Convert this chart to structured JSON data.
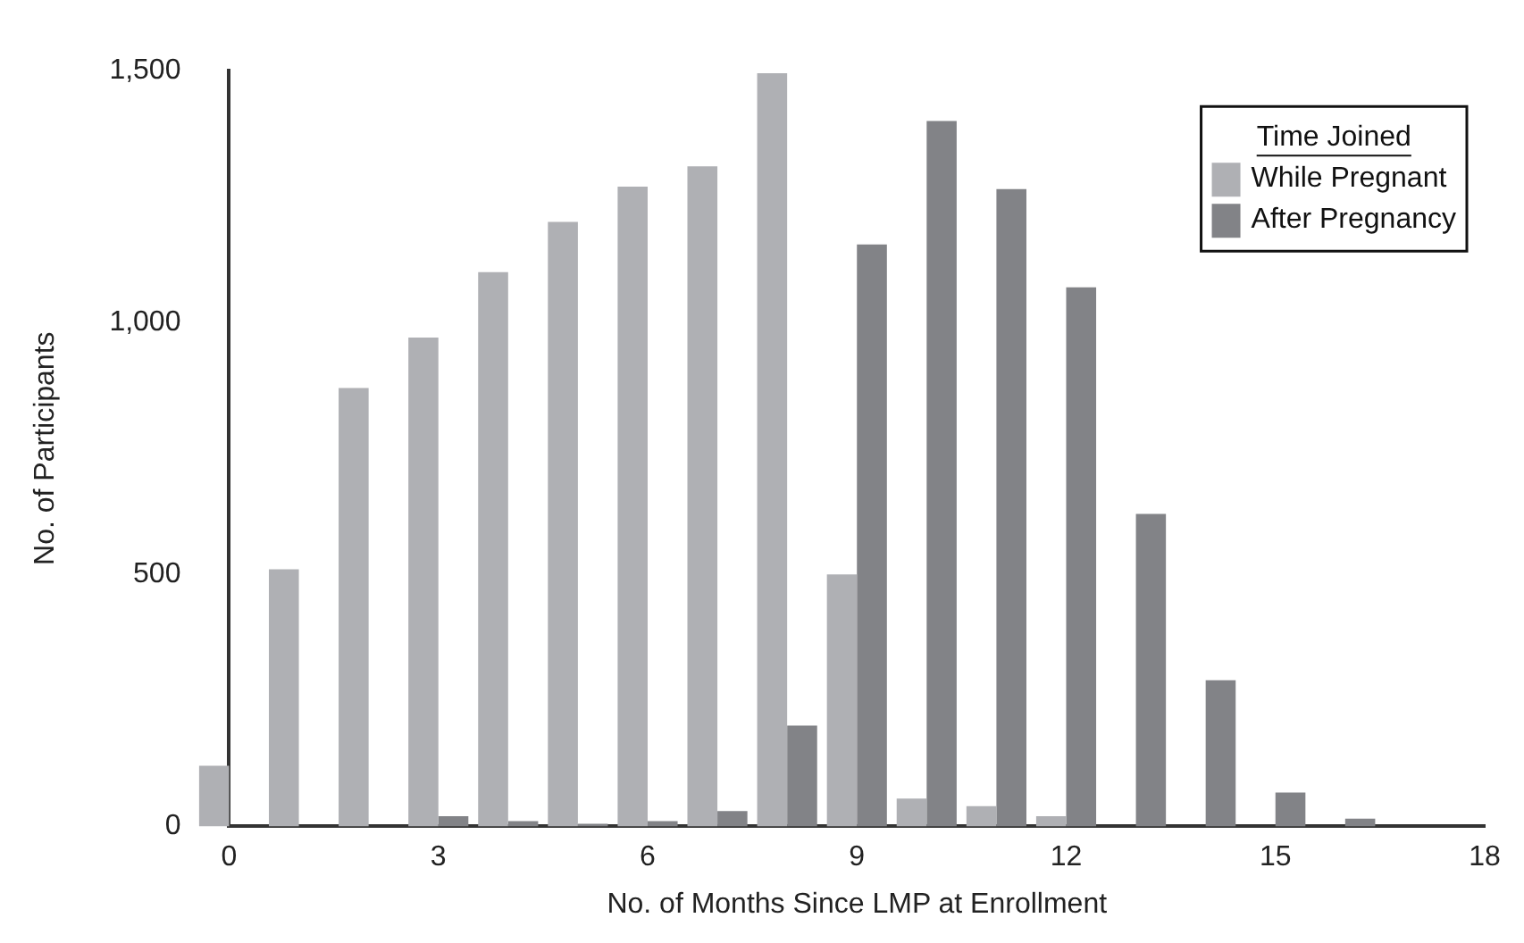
{
  "chart_data": {
    "type": "bar",
    "xlabel": "No. of Months Since LMP at Enrollment",
    "ylabel": "No. of Participants",
    "legend_title": "Time Joined",
    "x": [
      0,
      1,
      2,
      3,
      4,
      5,
      6,
      7,
      8,
      9,
      10,
      11,
      12,
      13,
      14,
      15,
      16,
      17
    ],
    "series": [
      {
        "name": "While Pregnant",
        "color": "#afb0b4",
        "values": [
          120,
          510,
          870,
          970,
          1100,
          1200,
          1270,
          1310,
          1495,
          500,
          55,
          40,
          20,
          0,
          0,
          0,
          0,
          0
        ]
      },
      {
        "name": "After Pregnancy",
        "color": "#828387",
        "values": [
          0,
          0,
          0,
          20,
          10,
          5,
          10,
          30,
          200,
          1155,
          1400,
          1265,
          1070,
          620,
          290,
          67,
          15,
          0
        ]
      }
    ],
    "xlim": [
      0,
      18
    ],
    "xticks": [
      0,
      3,
      6,
      9,
      12,
      15,
      18
    ],
    "ylim": [
      0,
      1500
    ],
    "yticks": [
      0,
      500,
      {
        "value": 1000,
        "label": "1,000"
      },
      {
        "value": 1500,
        "label": "1,500"
      }
    ],
    "grid": false,
    "legend": "top right"
  }
}
